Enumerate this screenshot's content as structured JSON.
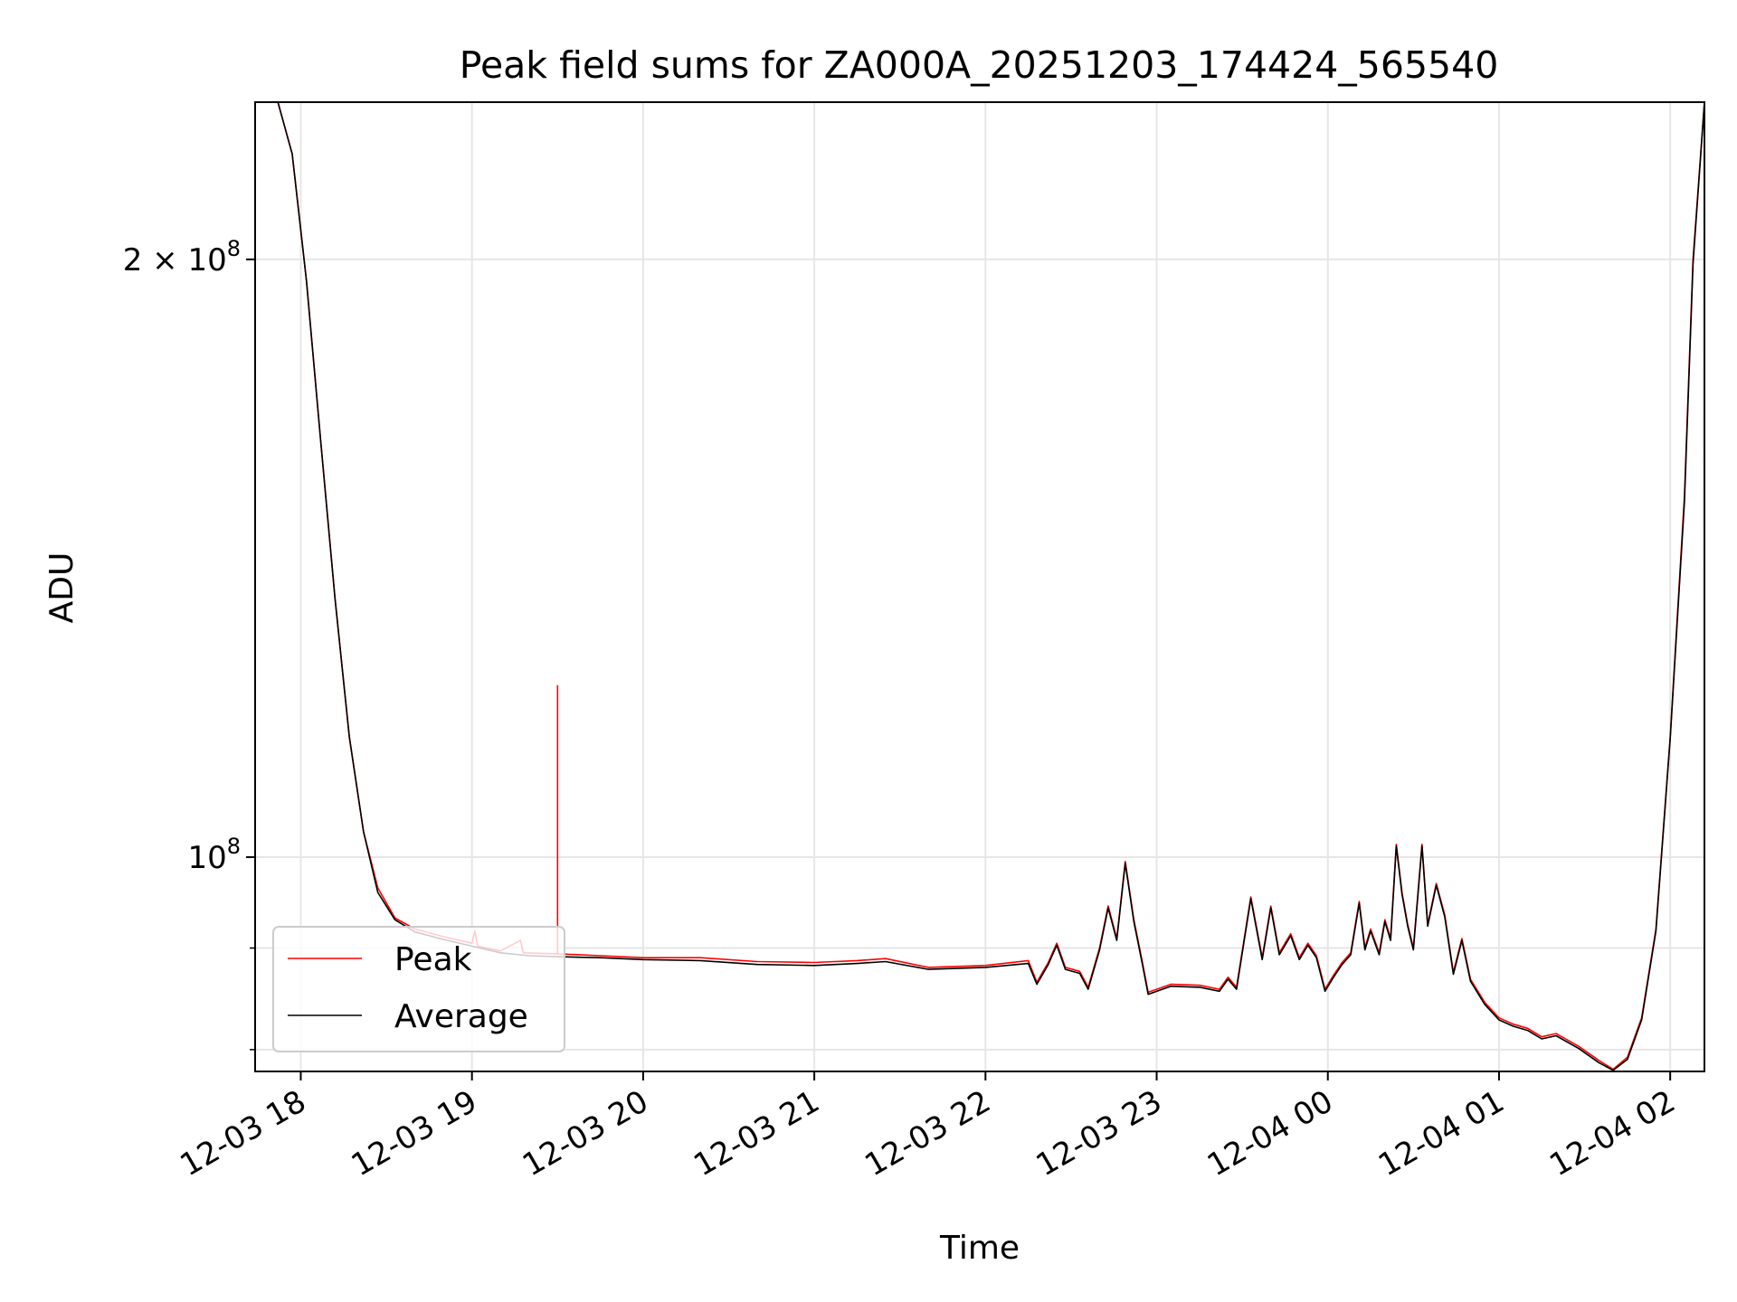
{
  "chart_data": {
    "type": "line",
    "title": "Peak field sums for ZA000A_20251203_174424_565540",
    "xlabel": "Time",
    "ylabel": "ADU",
    "yscale": "log",
    "xlim": [
      "2025-12-03T17:44",
      "2025-12-04T02:12"
    ],
    "ylim": [
      78000000,
      240000000
    ],
    "x_ticks": [
      {
        "value": "2025-12-03T18:00",
        "label": "12-03 18"
      },
      {
        "value": "2025-12-03T19:00",
        "label": "12-03 19"
      },
      {
        "value": "2025-12-03T20:00",
        "label": "12-03 20"
      },
      {
        "value": "2025-12-03T21:00",
        "label": "12-03 21"
      },
      {
        "value": "2025-12-03T22:00",
        "label": "12-03 22"
      },
      {
        "value": "2025-12-03T23:00",
        "label": "12-03 23"
      },
      {
        "value": "2025-12-04T00:00",
        "label": "12-04 00"
      },
      {
        "value": "2025-12-04T01:00",
        "label": "12-04 01"
      },
      {
        "value": "2025-12-04T02:00",
        "label": "12-04 02"
      }
    ],
    "y_major_ticks": [
      {
        "value": 100000000,
        "label_base": "10",
        "label_exp": "8",
        "label_coef": ""
      },
      {
        "value": 200000000,
        "label_base": "10",
        "label_exp": "8",
        "label_coef": "2 × "
      }
    ],
    "y_minor_ticks": [
      80000000,
      90000000
    ],
    "grid": true,
    "legend_position": "lower-left",
    "series": [
      {
        "name": "Peak",
        "color": "#ff0000",
        "points": [
          [
            "2025-12-03T17:44",
            240000000
          ],
          [
            "2025-12-03T17:52",
            240000000
          ],
          [
            "2025-12-03T17:57",
            226000000
          ],
          [
            "2025-12-03T18:02",
            195000000
          ],
          [
            "2025-12-03T18:07",
            162000000
          ],
          [
            "2025-12-03T18:12",
            135000000
          ],
          [
            "2025-12-03T18:17",
            115000000
          ],
          [
            "2025-12-03T18:22",
            103000000
          ],
          [
            "2025-12-03T18:27",
            96500000
          ],
          [
            "2025-12-03T18:33",
            93200000
          ],
          [
            "2025-12-03T18:40",
            92000000
          ],
          [
            "2025-12-03T18:50",
            91200000
          ],
          [
            "2025-12-03T19:00",
            90500000
          ],
          [
            "2025-12-03T19:01",
            91800000
          ],
          [
            "2025-12-03T19:02",
            90200000
          ],
          [
            "2025-12-03T19:10",
            89700000
          ],
          [
            "2025-12-03T19:17",
            90800000
          ],
          [
            "2025-12-03T19:18",
            89500000
          ],
          [
            "2025-12-03T19:30",
            89400000
          ],
          [
            "2025-12-03T19:30",
            122000000
          ],
          [
            "2025-12-03T19:30",
            89400000
          ],
          [
            "2025-12-03T19:45",
            89200000
          ],
          [
            "2025-12-03T20:00",
            89000000
          ],
          [
            "2025-12-03T20:20",
            89000000
          ],
          [
            "2025-12-03T20:40",
            88600000
          ],
          [
            "2025-12-03T21:00",
            88500000
          ],
          [
            "2025-12-03T21:15",
            88700000
          ],
          [
            "2025-12-03T21:25",
            88900000
          ],
          [
            "2025-12-03T21:40",
            88000000
          ],
          [
            "2025-12-03T22:00",
            88200000
          ],
          [
            "2025-12-03T22:15",
            88700000
          ],
          [
            "2025-12-03T22:18",
            86500000
          ],
          [
            "2025-12-03T22:22",
            88500000
          ],
          [
            "2025-12-03T22:25",
            90500000
          ],
          [
            "2025-12-03T22:28",
            88000000
          ],
          [
            "2025-12-03T22:33",
            87600000
          ],
          [
            "2025-12-03T22:36",
            86000000
          ],
          [
            "2025-12-03T22:40",
            90000000
          ],
          [
            "2025-12-03T22:43",
            94500000
          ],
          [
            "2025-12-03T22:46",
            91000000
          ],
          [
            "2025-12-03T22:49",
            99500000
          ],
          [
            "2025-12-03T22:52",
            93000000
          ],
          [
            "2025-12-03T22:55",
            88500000
          ],
          [
            "2025-12-03T22:57",
            85500000
          ],
          [
            "2025-12-03T23:05",
            86300000
          ],
          [
            "2025-12-03T23:15",
            86200000
          ],
          [
            "2025-12-03T23:22",
            85800000
          ],
          [
            "2025-12-03T23:25",
            87000000
          ],
          [
            "2025-12-03T23:28",
            86000000
          ],
          [
            "2025-12-03T23:33",
            95500000
          ],
          [
            "2025-12-03T23:37",
            89000000
          ],
          [
            "2025-12-03T23:40",
            94500000
          ],
          [
            "2025-12-03T23:43",
            89500000
          ],
          [
            "2025-12-03T23:47",
            91500000
          ],
          [
            "2025-12-03T23:50",
            89000000
          ],
          [
            "2025-12-03T23:53",
            90500000
          ],
          [
            "2025-12-03T23:56",
            89200000
          ],
          [
            "2025-12-03T23:59",
            85800000
          ],
          [
            "2025-12-04T00:02",
            87200000
          ],
          [
            "2025-12-04T00:05",
            88500000
          ],
          [
            "2025-12-04T00:08",
            89500000
          ],
          [
            "2025-12-04T00:11",
            95000000
          ],
          [
            "2025-12-04T00:13",
            90000000
          ],
          [
            "2025-12-04T00:15",
            92000000
          ],
          [
            "2025-12-04T00:18",
            89500000
          ],
          [
            "2025-12-04T00:20",
            93000000
          ],
          [
            "2025-12-04T00:22",
            91000000
          ],
          [
            "2025-12-04T00:24",
            101500000
          ],
          [
            "2025-12-04T00:26",
            96000000
          ],
          [
            "2025-12-04T00:28",
            92500000
          ],
          [
            "2025-12-04T00:30",
            90000000
          ],
          [
            "2025-12-04T00:33",
            101500000
          ],
          [
            "2025-12-04T00:35",
            92500000
          ],
          [
            "2025-12-04T00:38",
            97000000
          ],
          [
            "2025-12-04T00:41",
            93500000
          ],
          [
            "2025-12-04T00:44",
            87500000
          ],
          [
            "2025-12-04T00:47",
            91000000
          ],
          [
            "2025-12-04T00:50",
            86800000
          ],
          [
            "2025-12-04T00:55",
            84500000
          ],
          [
            "2025-12-04T01:00",
            83000000
          ],
          [
            "2025-12-04T01:05",
            82400000
          ],
          [
            "2025-12-04T01:10",
            82000000
          ],
          [
            "2025-12-04T01:15",
            81200000
          ],
          [
            "2025-12-04T01:20",
            81500000
          ],
          [
            "2025-12-04T01:28",
            80300000
          ],
          [
            "2025-12-04T01:35",
            79000000
          ],
          [
            "2025-12-04T01:40",
            78200000
          ],
          [
            "2025-12-04T01:45",
            79300000
          ],
          [
            "2025-12-04T01:50",
            83000000
          ],
          [
            "2025-12-04T01:55",
            92000000
          ],
          [
            "2025-12-04T02:00",
            115000000
          ],
          [
            "2025-12-04T02:05",
            152000000
          ],
          [
            "2025-12-04T02:08",
            200000000
          ],
          [
            "2025-12-04T02:12",
            240000000
          ]
        ]
      },
      {
        "name": "Average",
        "color": "#000000",
        "points": [
          [
            "2025-12-03T17:44",
            240000000
          ],
          [
            "2025-12-03T17:52",
            240000000
          ],
          [
            "2025-12-03T17:57",
            226000000
          ],
          [
            "2025-12-03T18:02",
            195000000
          ],
          [
            "2025-12-03T18:07",
            162000000
          ],
          [
            "2025-12-03T18:12",
            135000000
          ],
          [
            "2025-12-03T18:17",
            115000000
          ],
          [
            "2025-12-03T18:22",
            103000000
          ],
          [
            "2025-12-03T18:27",
            96000000
          ],
          [
            "2025-12-03T18:33",
            93000000
          ],
          [
            "2025-12-03T18:40",
            91700000
          ],
          [
            "2025-12-03T18:50",
            90900000
          ],
          [
            "2025-12-03T19:00",
            90200000
          ],
          [
            "2025-12-03T19:10",
            89500000
          ],
          [
            "2025-12-03T19:20",
            89200000
          ],
          [
            "2025-12-03T19:30",
            89100000
          ],
          [
            "2025-12-03T19:45",
            89000000
          ],
          [
            "2025-12-03T20:00",
            88800000
          ],
          [
            "2025-12-03T20:20",
            88700000
          ],
          [
            "2025-12-03T20:40",
            88300000
          ],
          [
            "2025-12-03T21:00",
            88200000
          ],
          [
            "2025-12-03T21:15",
            88400000
          ],
          [
            "2025-12-03T21:25",
            88600000
          ],
          [
            "2025-12-03T21:40",
            87800000
          ],
          [
            "2025-12-03T22:00",
            88000000
          ],
          [
            "2025-12-03T22:15",
            88400000
          ],
          [
            "2025-12-03T22:18",
            86300000
          ],
          [
            "2025-12-03T22:22",
            88300000
          ],
          [
            "2025-12-03T22:25",
            90300000
          ],
          [
            "2025-12-03T22:28",
            87800000
          ],
          [
            "2025-12-03T22:33",
            87400000
          ],
          [
            "2025-12-03T22:36",
            85800000
          ],
          [
            "2025-12-03T22:40",
            89800000
          ],
          [
            "2025-12-03T22:43",
            94300000
          ],
          [
            "2025-12-03T22:46",
            90800000
          ],
          [
            "2025-12-03T22:49",
            99300000
          ],
          [
            "2025-12-03T22:52",
            92800000
          ],
          [
            "2025-12-03T22:55",
            88300000
          ],
          [
            "2025-12-03T22:57",
            85300000
          ],
          [
            "2025-12-03T23:05",
            86100000
          ],
          [
            "2025-12-03T23:15",
            86000000
          ],
          [
            "2025-12-03T23:22",
            85600000
          ],
          [
            "2025-12-03T23:25",
            86800000
          ],
          [
            "2025-12-03T23:28",
            85800000
          ],
          [
            "2025-12-03T23:33",
            95300000
          ],
          [
            "2025-12-03T23:37",
            88800000
          ],
          [
            "2025-12-03T23:40",
            94300000
          ],
          [
            "2025-12-03T23:43",
            89300000
          ],
          [
            "2025-12-03T23:47",
            91300000
          ],
          [
            "2025-12-03T23:50",
            88800000
          ],
          [
            "2025-12-03T23:53",
            90300000
          ],
          [
            "2025-12-03T23:56",
            89000000
          ],
          [
            "2025-12-03T23:59",
            85600000
          ],
          [
            "2025-12-04T00:02",
            87000000
          ],
          [
            "2025-12-04T00:05",
            88300000
          ],
          [
            "2025-12-04T00:08",
            89300000
          ],
          [
            "2025-12-04T00:11",
            94800000
          ],
          [
            "2025-12-04T00:13",
            89800000
          ],
          [
            "2025-12-04T00:15",
            91800000
          ],
          [
            "2025-12-04T00:18",
            89300000
          ],
          [
            "2025-12-04T00:20",
            92800000
          ],
          [
            "2025-12-04T00:22",
            90800000
          ],
          [
            "2025-12-04T00:24",
            101300000
          ],
          [
            "2025-12-04T00:26",
            95800000
          ],
          [
            "2025-12-04T00:28",
            92300000
          ],
          [
            "2025-12-04T00:30",
            89800000
          ],
          [
            "2025-12-04T00:33",
            101300000
          ],
          [
            "2025-12-04T00:35",
            92300000
          ],
          [
            "2025-12-04T00:38",
            96800000
          ],
          [
            "2025-12-04T00:41",
            93300000
          ],
          [
            "2025-12-04T00:44",
            87300000
          ],
          [
            "2025-12-04T00:47",
            90800000
          ],
          [
            "2025-12-04T00:50",
            86600000
          ],
          [
            "2025-12-04T00:55",
            84300000
          ],
          [
            "2025-12-04T01:00",
            82800000
          ],
          [
            "2025-12-04T01:05",
            82200000
          ],
          [
            "2025-12-04T01:10",
            81800000
          ],
          [
            "2025-12-04T01:15",
            81000000
          ],
          [
            "2025-12-04T01:20",
            81300000
          ],
          [
            "2025-12-04T01:28",
            80100000
          ],
          [
            "2025-12-04T01:35",
            78800000
          ],
          [
            "2025-12-04T01:40",
            78100000
          ],
          [
            "2025-12-04T01:45",
            79100000
          ],
          [
            "2025-12-04T01:50",
            82800000
          ],
          [
            "2025-12-04T01:55",
            91800000
          ],
          [
            "2025-12-04T02:00",
            114800000
          ],
          [
            "2025-12-04T02:05",
            151000000
          ],
          [
            "2025-12-04T02:08",
            199000000
          ],
          [
            "2025-12-04T02:12",
            240000000
          ]
        ]
      }
    ]
  }
}
